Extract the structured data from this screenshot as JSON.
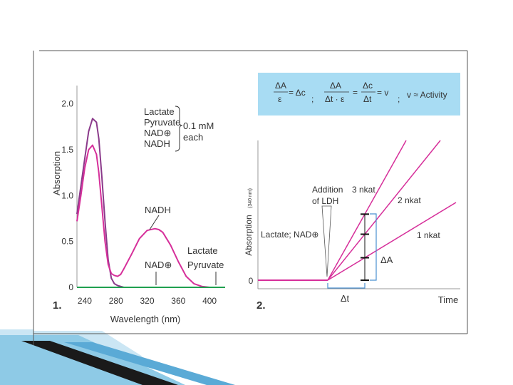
{
  "chart_data": [
    {
      "panel_label": "1.",
      "type": "line",
      "xlabel": "Wavelength (nm)",
      "ylabel": "Absorption",
      "xlim": [
        230,
        420
      ],
      "ylim": [
        0,
        2.2
      ],
      "x_ticks": [
        "240",
        "280",
        "320",
        "360",
        "400"
      ],
      "y_ticks": [
        "0",
        "0.5",
        "1.0",
        "1.5",
        "2.0"
      ],
      "legend": {
        "items": [
          "Lactate",
          "Pyruvate",
          "NAD⊕",
          "NADH"
        ],
        "note": "0.1 mM",
        "note2": "each"
      },
      "annotations": {
        "nadh": "NADH",
        "nad": "NAD⊕",
        "lactate": "Lactate",
        "pyruvate": "Pyruvate"
      },
      "series": [
        {
          "key": "nad",
          "color": "#8b3a8b",
          "x": [
            230,
            240,
            245,
            250,
            255,
            258,
            262,
            266,
            270,
            274,
            278,
            282,
            286,
            290,
            300,
            320,
            340,
            360,
            380,
            400,
            410
          ],
          "y": [
            0.8,
            1.4,
            1.7,
            1.84,
            1.8,
            1.62,
            1.2,
            0.72,
            0.3,
            0.1,
            0.04,
            0.02,
            0.01,
            0.0,
            0.0,
            0.0,
            0.0,
            0.0,
            0.0,
            0.0,
            0.0
          ]
        },
        {
          "key": "nadh",
          "color": "#d62f9a",
          "x": [
            230,
            235,
            240,
            245,
            250,
            255,
            258,
            262,
            266,
            270,
            274,
            278,
            282,
            286,
            290,
            300,
            310,
            320,
            330,
            335,
            340,
            350,
            360,
            370,
            380,
            390,
            400
          ],
          "y": [
            0.72,
            1.0,
            1.3,
            1.5,
            1.55,
            1.45,
            1.25,
            0.88,
            0.5,
            0.25,
            0.15,
            0.13,
            0.12,
            0.14,
            0.2,
            0.36,
            0.53,
            0.62,
            0.64,
            0.63,
            0.6,
            0.46,
            0.28,
            0.12,
            0.04,
            0.01,
            0.0
          ]
        },
        {
          "key": "lactate_pyruvate",
          "color": "#20a050",
          "x": [
            230,
            420
          ],
          "y": [
            0.0,
            0.0
          ]
        }
      ]
    },
    {
      "panel_label": "2.",
      "type": "line",
      "xlabel": "Time",
      "ylabel": "Absorption",
      "ylabel_sub": "(340 nm)",
      "y_ticks": [
        "0"
      ],
      "baseline_label": "Lactate; NAD⊕",
      "event_label_1": "Addition",
      "event_label_2": "of LDH",
      "delta_a": "ΔA",
      "delta_t": "Δt",
      "series": [
        {
          "name": "3 nkat",
          "slope": 3,
          "color": "#d62f9a"
        },
        {
          "name": "2 nkat",
          "slope": 2,
          "color": "#d62f9a"
        },
        {
          "name": "1 nkat",
          "slope": 1,
          "color": "#d62f9a"
        }
      ]
    }
  ],
  "formula": {
    "f1_num": "ΔA",
    "f1_den": "ε",
    "f1_rhs": "= Δc",
    "sep1": ";",
    "f2_num": "ΔA",
    "f2_den": "Δt · ε",
    "eq": "=",
    "f3_num": "Δc",
    "f3_den": "Δt",
    "f3_rhs": "= v",
    "sep2": ";",
    "f4": "v ≈ Activity"
  },
  "colors": {
    "formula_box": "#a8dcf3",
    "bracket": "#4a90d0",
    "decor_dark": "#1a1a1a",
    "decor_blue": "#8ecae6"
  }
}
